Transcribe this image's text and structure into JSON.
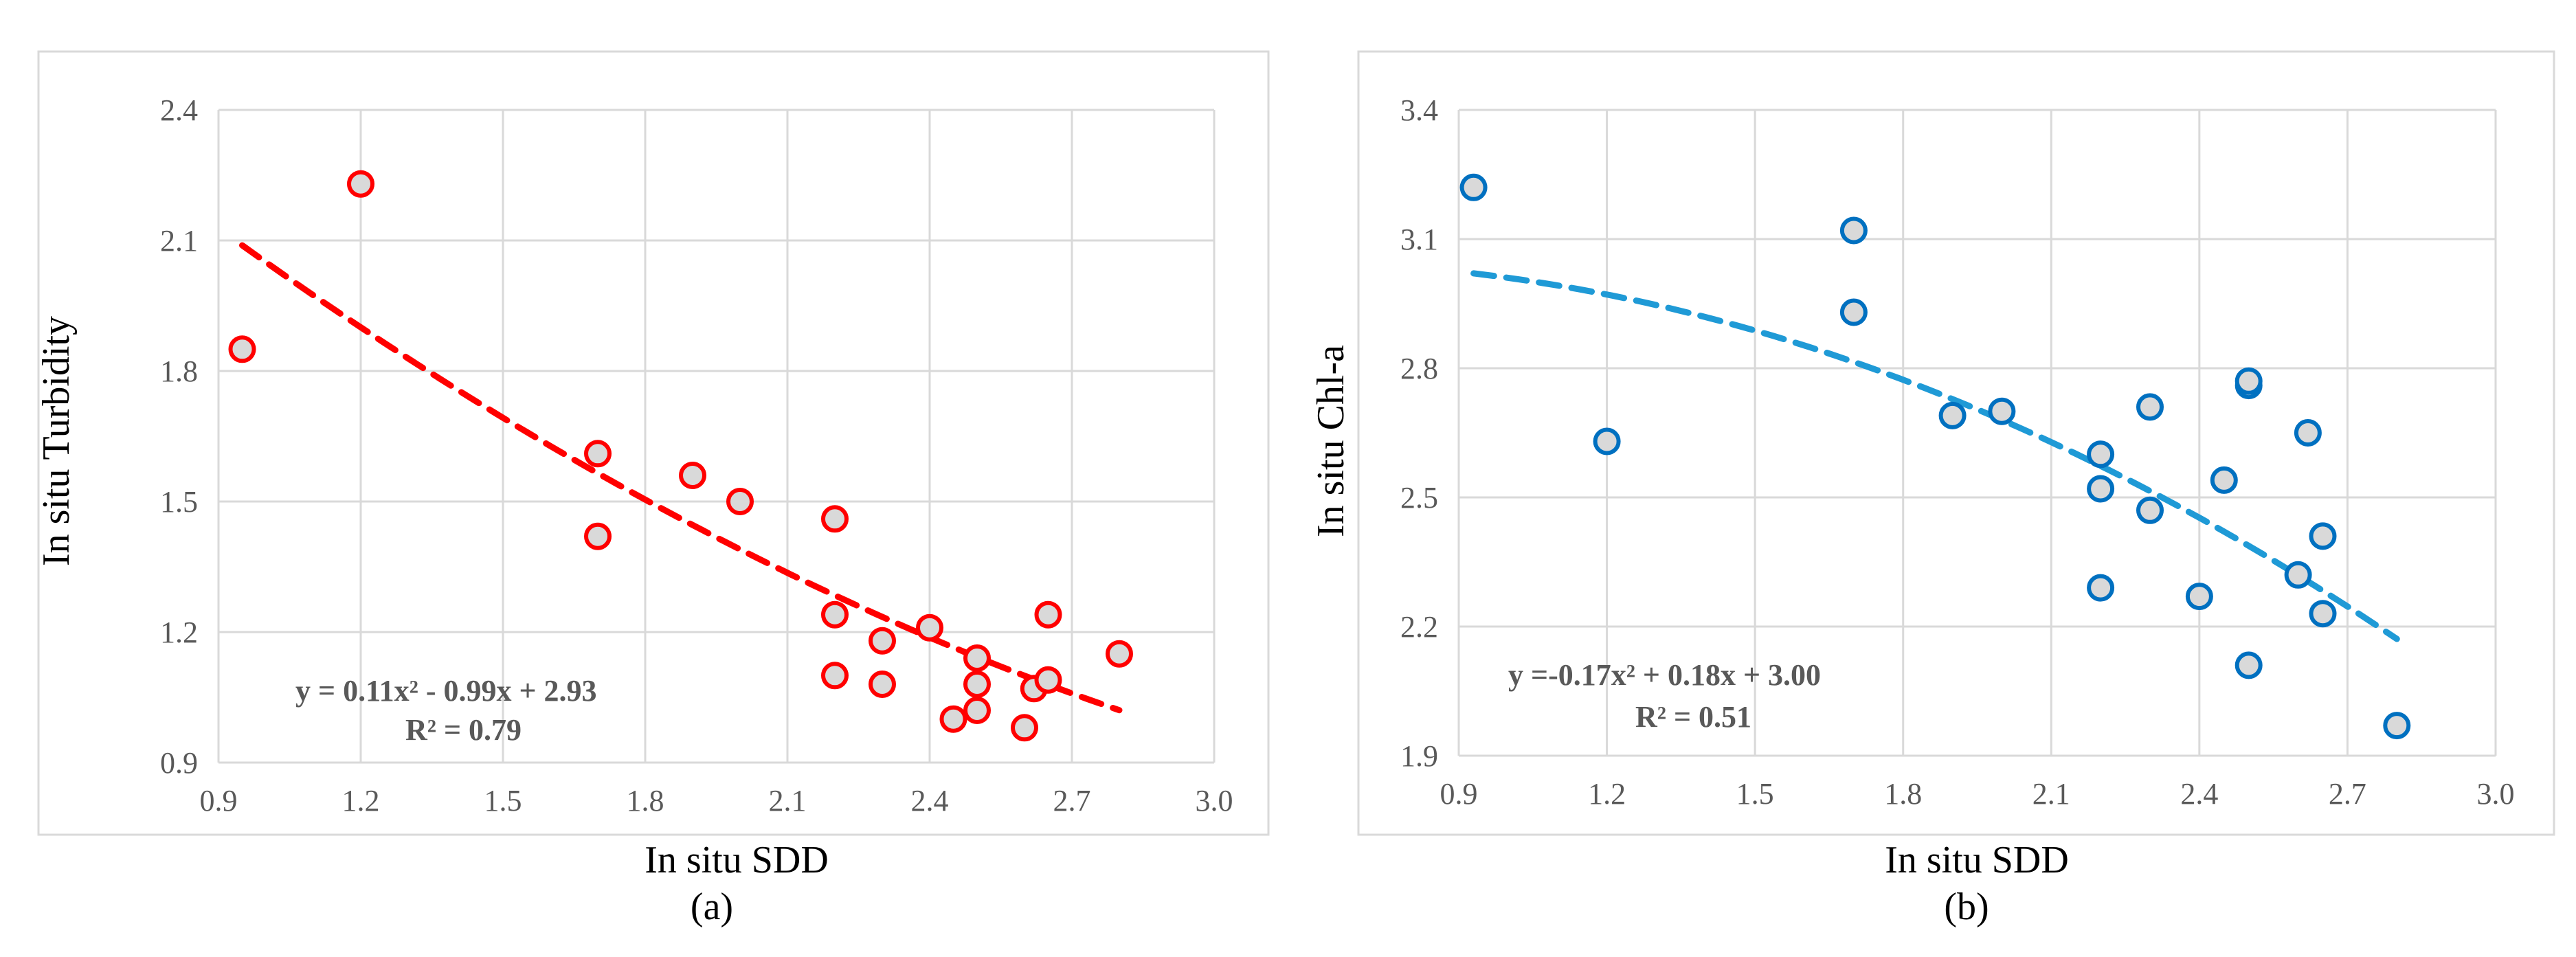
{
  "chart_data": [
    {
      "type": "scatter",
      "caption": "(a)",
      "xlabel": "In situ SDD",
      "ylabel": "In situ Turbidity",
      "xlim": [
        0.9,
        3.0
      ],
      "ylim": [
        0.9,
        2.4
      ],
      "xticks": [
        "0.9",
        "1.2",
        "1.5",
        "1.8",
        "2.1",
        "2.4",
        "2.7",
        "3.0"
      ],
      "yticks": [
        "0.9",
        "1.2",
        "1.5",
        "1.8",
        "2.1",
        "2.4"
      ],
      "grid": true,
      "marker_color": "#ff0000",
      "marker_fill": "#d9d9d9",
      "trend_color": "#ff0000",
      "trend": {
        "a": 0.11,
        "b": -0.99,
        "c": 2.93,
        "x_from": 0.95,
        "x_to": 2.8
      },
      "equation": "y = 0.11x² -  0.99x + 2.93",
      "r2": "R² = 0.79",
      "points": [
        [
          0.95,
          1.85
        ],
        [
          1.2,
          2.23
        ],
        [
          1.7,
          1.61
        ],
        [
          1.7,
          1.42
        ],
        [
          1.9,
          1.56
        ],
        [
          2.0,
          1.5
        ],
        [
          2.2,
          1.46
        ],
        [
          2.2,
          1.24
        ],
        [
          2.2,
          1.1
        ],
        [
          2.3,
          1.18
        ],
        [
          2.3,
          1.08
        ],
        [
          2.4,
          1.21
        ],
        [
          2.45,
          1.0
        ],
        [
          2.5,
          1.14
        ],
        [
          2.5,
          1.08
        ],
        [
          2.5,
          1.02
        ],
        [
          2.6,
          0.98
        ],
        [
          2.62,
          1.07
        ],
        [
          2.65,
          1.09
        ],
        [
          2.65,
          1.24
        ],
        [
          2.8,
          1.15
        ]
      ]
    },
    {
      "type": "scatter",
      "caption": "(b)",
      "xlabel": "In situ SDD",
      "ylabel": "In situ Chl-a",
      "xlim": [
        0.9,
        3.0
      ],
      "ylim": [
        1.9,
        3.4
      ],
      "xticks": [
        "0.9",
        "1.2",
        "1.5",
        "1.8",
        "2.1",
        "2.4",
        "2.7",
        "3.0"
      ],
      "yticks": [
        "1.9",
        "2.2",
        "2.5",
        "2.8",
        "3.1",
        "3.4"
      ],
      "grid": true,
      "marker_color": "#0070c0",
      "marker_fill": "#d9d9d9",
      "trend_color": "#1f9ad6",
      "trend": {
        "a": -0.17,
        "b": 0.18,
        "c": 3.0,
        "x_from": 0.93,
        "x_to": 2.8
      },
      "equation": "y =-0.17x²  + 0.18x + 3.00",
      "r2": "R² = 0.51",
      "points": [
        [
          0.93,
          3.22
        ],
        [
          1.2,
          2.63
        ],
        [
          1.7,
          3.12
        ],
        [
          1.7,
          2.93
        ],
        [
          1.9,
          2.69
        ],
        [
          2.0,
          2.7
        ],
        [
          2.2,
          2.6
        ],
        [
          2.2,
          2.52
        ],
        [
          2.2,
          2.29
        ],
        [
          2.3,
          2.71
        ],
        [
          2.3,
          2.47
        ],
        [
          2.4,
          2.27
        ],
        [
          2.45,
          2.54
        ],
        [
          2.5,
          2.76
        ],
        [
          2.5,
          2.77
        ],
        [
          2.5,
          2.11
        ],
        [
          2.6,
          2.32
        ],
        [
          2.62,
          2.65
        ],
        [
          2.65,
          2.41
        ],
        [
          2.65,
          2.23
        ],
        [
          2.8,
          1.97
        ]
      ]
    }
  ]
}
